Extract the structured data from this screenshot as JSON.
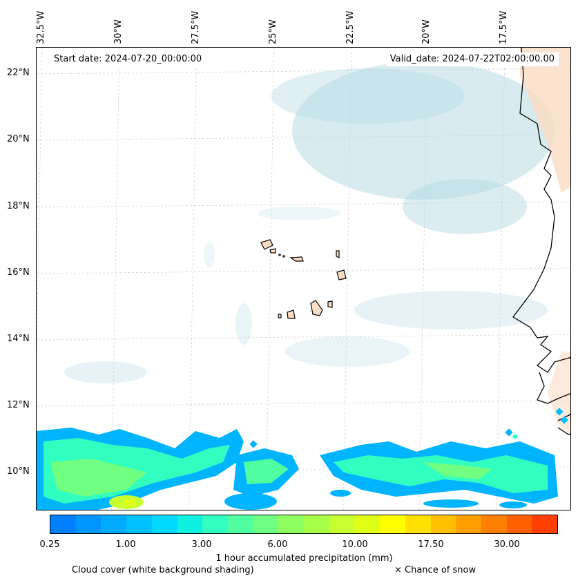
{
  "header": {
    "start_date": "Start date: 2024-07-20_00:00:00",
    "valid_date": "Valid_date: 2024-07-22T02:00:00.00"
  },
  "axes": {
    "lon_labels": [
      "32.5°W",
      "30°W",
      "27.5°W",
      "25°W",
      "22.5°W",
      "20°W",
      "17.5°W"
    ],
    "lat_labels": [
      "22°N",
      "20°N",
      "18°N",
      "16°N",
      "14°N",
      "12°N",
      "10°N"
    ]
  },
  "colorbar": {
    "title": "1 hour accumulated precipitation (mm)",
    "ticks": [
      "0.25",
      "1.00",
      "3.00",
      "6.00",
      "10.00",
      "17.50",
      "30.00"
    ],
    "colors": [
      "#0080ff",
      "#0096ff",
      "#00aaff",
      "#00c0ff",
      "#00d8ff",
      "#10f0e0",
      "#30ffc0",
      "#50ffa0",
      "#70ff80",
      "#90ff60",
      "#a8ff48",
      "#c8ff30",
      "#e0ff18",
      "#ffff00",
      "#ffe000",
      "#ffc000",
      "#ffa000",
      "#ff8000",
      "#ff6000",
      "#ff4000"
    ]
  },
  "legend": {
    "cloud_cover": "Cloud cover (white background shading)",
    "snow": "× Chance of snow"
  },
  "colors": {
    "land": "#fbdcc4",
    "cloud": "#b7dbe4",
    "gridline": "#cccccc",
    "coast": "#000000"
  }
}
